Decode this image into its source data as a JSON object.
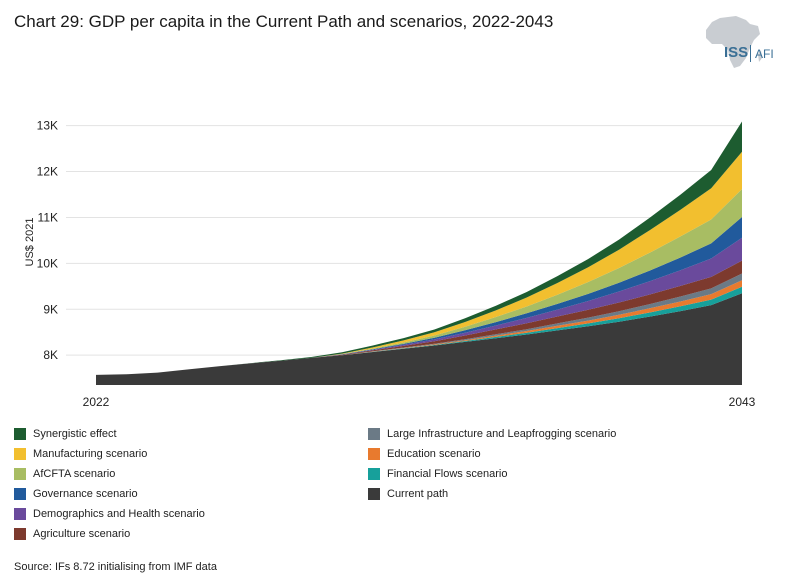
{
  "title": "Chart 29: GDP per capita in the Current Path and scenarios, 2022-2043",
  "logo": {
    "name": "ISS",
    "sub": "AFI"
  },
  "source": "Source: IFs 8.72 initialising from IMF data",
  "colors": {
    "current": "#3a3a3a",
    "financial": "#17a09b",
    "education": "#e87a2e",
    "infrastructure": "#6b7a86",
    "agriculture": "#7d3a2e",
    "demographics": "#6a4a9c",
    "governance": "#215a9c",
    "afcfta": "#a8bd63",
    "manufacturing": "#f2bf2f",
    "synergistic": "#1d5c30"
  },
  "chart_data": {
    "type": "area",
    "title": "Chart 29: GDP per capita in the Current Path and scenarios, 2022-2043",
    "xlabel": "",
    "ylabel": "US$ 2021",
    "x": [
      2022,
      2023,
      2024,
      2025,
      2026,
      2027,
      2028,
      2029,
      2030,
      2031,
      2032,
      2033,
      2034,
      2035,
      2036,
      2037,
      2038,
      2039,
      2040,
      2041,
      2042,
      2043
    ],
    "x_tick_labels": [
      "2022",
      "2043"
    ],
    "y_ticks": [
      8000,
      9000,
      10000,
      11000,
      12000,
      13000
    ],
    "y_tick_labels": [
      "8K",
      "9K",
      "10K",
      "11K",
      "12K",
      "13K"
    ],
    "ylim": [
      7350,
      13450
    ],
    "grid": true,
    "legend_position": "bottom",
    "base_series": "Current path",
    "series": [
      {
        "name": "Current path",
        "color_key": "current",
        "values": [
          7570,
          7585,
          7620,
          7690,
          7760,
          7820,
          7880,
          7940,
          8000,
          8070,
          8140,
          8210,
          8290,
          8370,
          8450,
          8540,
          8630,
          8730,
          8840,
          8960,
          9090,
          9350
        ]
      },
      {
        "name": "Financial Flows scenario",
        "color_key": "financial",
        "values": [
          0,
          0,
          0,
          0,
          0,
          0,
          0,
          0,
          0,
          5,
          8,
          12,
          18,
          28,
          38,
          50,
          62,
          75,
          90,
          105,
          120,
          140
        ]
      },
      {
        "name": "Education scenario",
        "color_key": "education",
        "values": [
          0,
          0,
          0,
          0,
          0,
          0,
          0,
          0,
          0,
          5,
          8,
          12,
          18,
          28,
          38,
          50,
          62,
          75,
          90,
          105,
          120,
          140
        ]
      },
      {
        "name": "Large Infrastructure and Leapfrogging scenario",
        "color_key": "infrastructure",
        "values": [
          0,
          0,
          0,
          0,
          0,
          0,
          0,
          0,
          0,
          5,
          10,
          15,
          22,
          30,
          40,
          52,
          65,
          78,
          92,
          108,
          125,
          150
        ]
      },
      {
        "name": "Agriculture scenario",
        "color_key": "agriculture",
        "values": [
          0,
          0,
          0,
          0,
          0,
          0,
          0,
          0,
          10,
          20,
          35,
          55,
          80,
          105,
          130,
          150,
          170,
          190,
          210,
          230,
          250,
          280
        ]
      },
      {
        "name": "Demographics and Health scenario",
        "color_key": "demographics",
        "values": [
          0,
          0,
          0,
          0,
          0,
          0,
          0,
          0,
          5,
          15,
          25,
          40,
          60,
          85,
          115,
          150,
          190,
          240,
          290,
          340,
          400,
          500
        ]
      },
      {
        "name": "Governance scenario",
        "color_key": "governance",
        "values": [
          0,
          0,
          0,
          0,
          0,
          0,
          0,
          0,
          5,
          10,
          20,
          35,
          55,
          75,
          100,
          125,
          155,
          190,
          230,
          280,
          330,
          450
        ]
      },
      {
        "name": "AfCFTA scenario",
        "color_key": "afcfta",
        "values": [
          0,
          0,
          0,
          0,
          0,
          0,
          0,
          0,
          5,
          15,
          30,
          50,
          75,
          110,
          150,
          200,
          260,
          320,
          390,
          460,
          520,
          610
        ]
      },
      {
        "name": "Manufacturing scenario",
        "color_key": "manufacturing",
        "values": [
          0,
          0,
          0,
          0,
          0,
          0,
          0,
          0,
          10,
          25,
          45,
          70,
          105,
          145,
          195,
          255,
          320,
          400,
          490,
          580,
          680,
          810
        ]
      },
      {
        "name": "Synergistic effect",
        "color_key": "synergistic",
        "values": [
          0,
          0,
          0,
          0,
          0,
          5,
          10,
          20,
          30,
          40,
          50,
          60,
          80,
          100,
          120,
          150,
          180,
          220,
          270,
          330,
          400,
          660
        ]
      }
    ]
  },
  "legend": {
    "left": [
      {
        "label": "Synergistic effect",
        "color_key": "synergistic"
      },
      {
        "label": "Manufacturing scenario",
        "color_key": "manufacturing"
      },
      {
        "label": "AfCFTA scenario",
        "color_key": "afcfta"
      },
      {
        "label": "Governance scenario",
        "color_key": "governance"
      },
      {
        "label": "Demographics and Health scenario",
        "color_key": "demographics"
      },
      {
        "label": "Agriculture scenario",
        "color_key": "agriculture"
      }
    ],
    "right": [
      {
        "label": "Large Infrastructure and Leapfrogging scenario",
        "color_key": "infrastructure"
      },
      {
        "label": "Education scenario",
        "color_key": "education"
      },
      {
        "label": "Financial Flows scenario",
        "color_key": "financial"
      },
      {
        "label": "Current path",
        "color_key": "current"
      }
    ]
  }
}
